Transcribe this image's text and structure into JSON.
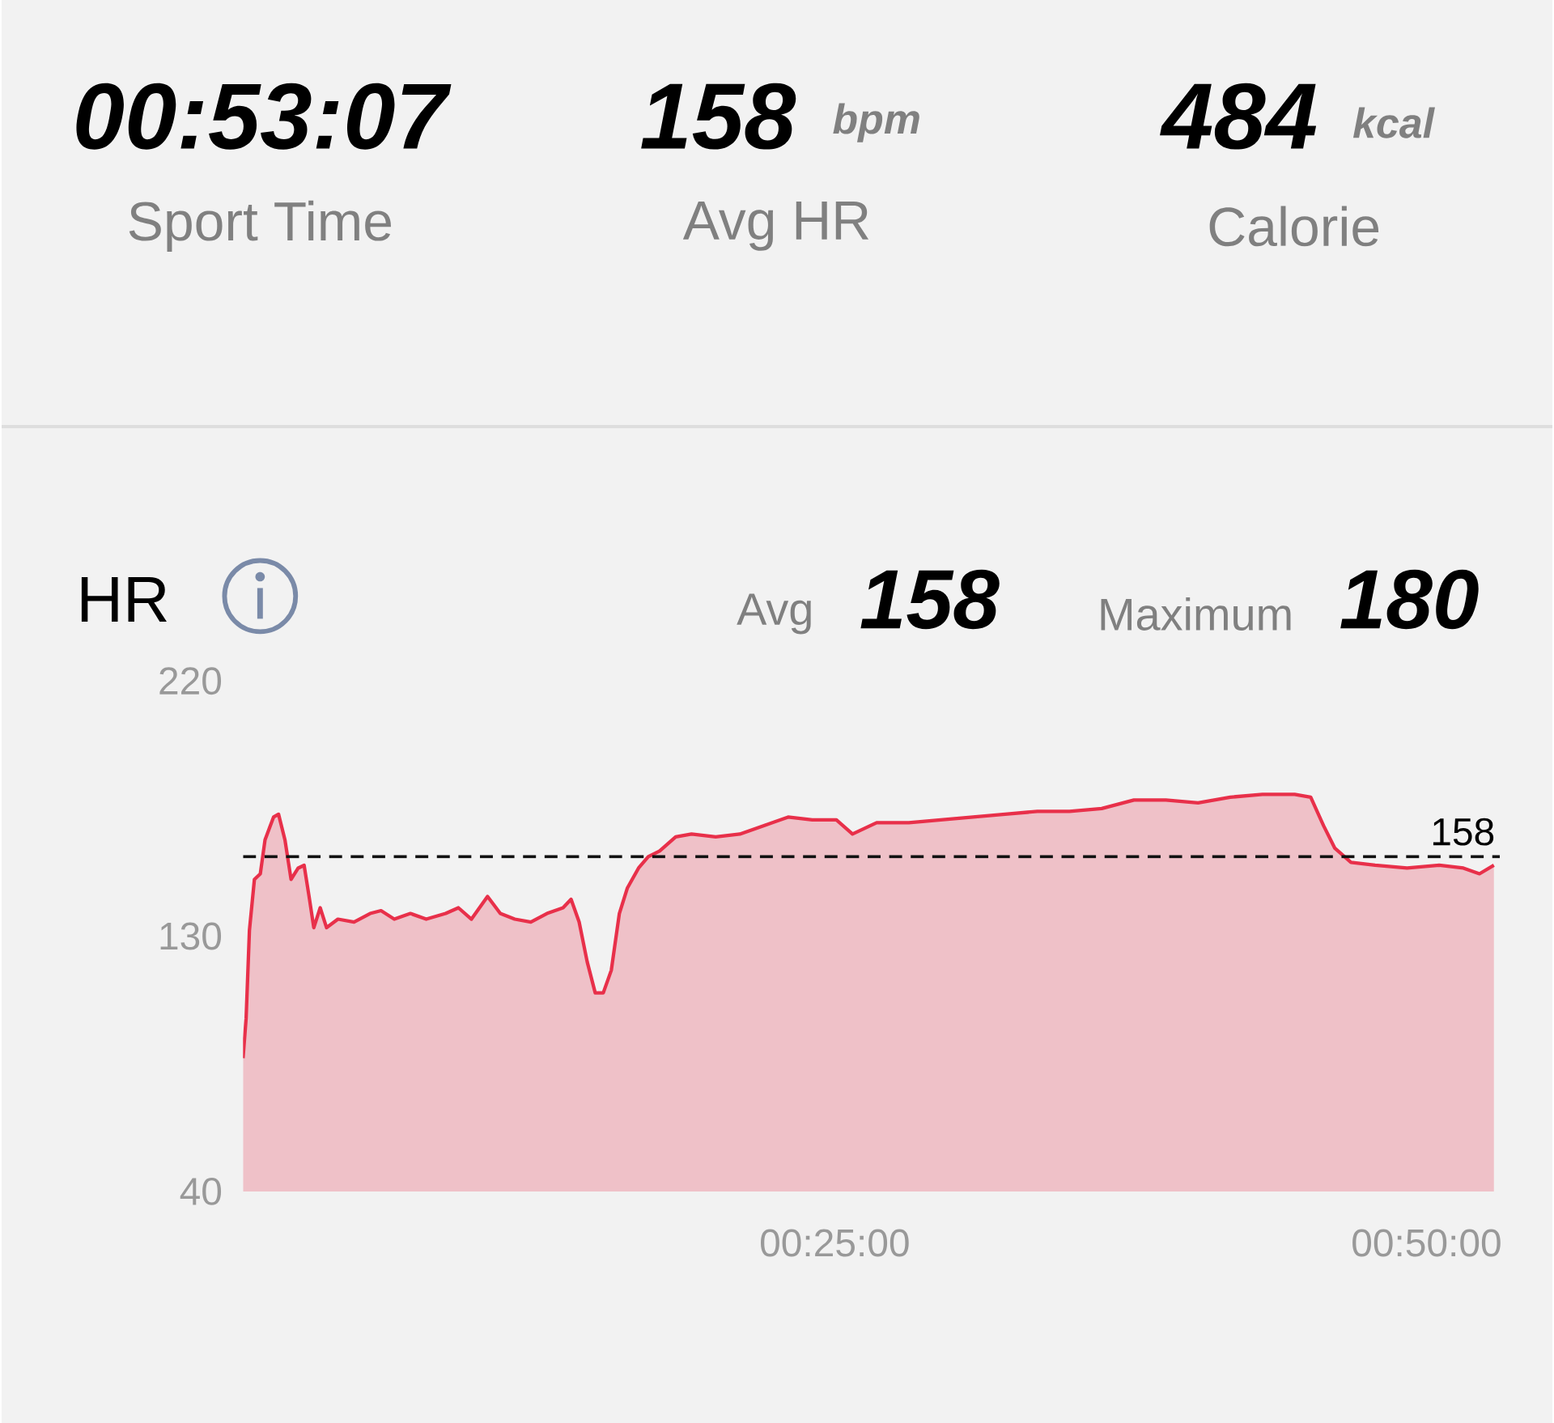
{
  "chart_data": {
    "type": "area",
    "title": "HR",
    "annotations": [
      "00:53:07",
      "Sport Time",
      "158",
      "bpm",
      "Avg HR",
      "484",
      "kcal",
      "Calorie",
      "Avg",
      "158",
      "Maximum",
      "180"
    ],
    "series": [
      {
        "color": "#e8304a",
        "x": [
          0,
          0.13,
          0.27,
          0.48,
          0.73,
          0.93,
          1.29,
          1.5,
          1.77,
          2.03,
          2.33,
          2.58,
          2.79,
          2.99,
          3.26,
          3.53,
          4.01,
          4.69,
          5.37,
          5.83,
          6.39,
          7.07,
          7.74,
          8.56,
          9.1,
          9.65,
          10.33,
          10.87,
          11.48,
          12.16,
          12.84,
          13.52,
          13.86,
          14.2,
          14.54,
          14.88,
          15.22,
          15.56,
          15.9,
          16.24,
          16.71,
          17.12,
          17.6,
          18.28,
          18.95,
          19.97,
          20.99,
          22.01,
          23.03,
          24.05,
          25.07,
          25.75,
          26.77,
          28.13,
          29.48,
          30.84,
          32.2,
          33.56,
          34.92,
          36.28,
          37.64,
          38.99,
          40.35,
          41.71,
          43.07,
          44.43,
          45.11,
          45.65,
          46.13,
          46.81,
          47.83,
          49.18,
          50.54,
          51.56,
          52.24,
          52.85
        ],
        "values": [
          87,
          101,
          132,
          150,
          152,
          164,
          172,
          173,
          164,
          150,
          154,
          155,
          144,
          133,
          140,
          133,
          136,
          135,
          138,
          139,
          136,
          138,
          136,
          138,
          140,
          136,
          144,
          138,
          136,
          135,
          138,
          140,
          143,
          135,
          121,
          110,
          110,
          118,
          138,
          147,
          154,
          158,
          160,
          165,
          166,
          165,
          166,
          169,
          172,
          171,
          171,
          166,
          170,
          170,
          171,
          172,
          173,
          174,
          174,
          175,
          178,
          178,
          177,
          179,
          180,
          180,
          179,
          169,
          161,
          156,
          155,
          154,
          155,
          154,
          152,
          155
        ]
      }
    ],
    "xlim": [
      0,
      53.1
    ],
    "xticks": [
      {
        "value": 25,
        "label": "00:25:00"
      },
      {
        "value": 50,
        "label": "00:50:00"
      }
    ],
    "ylim": [
      40,
      220
    ],
    "yticks": [
      40,
      130,
      220
    ],
    "ref_lines": [
      {
        "axis": "y",
        "value": 158,
        "label": "158",
        "color": "#111111",
        "line_style": "dashed"
      }
    ],
    "grid": false
  }
}
